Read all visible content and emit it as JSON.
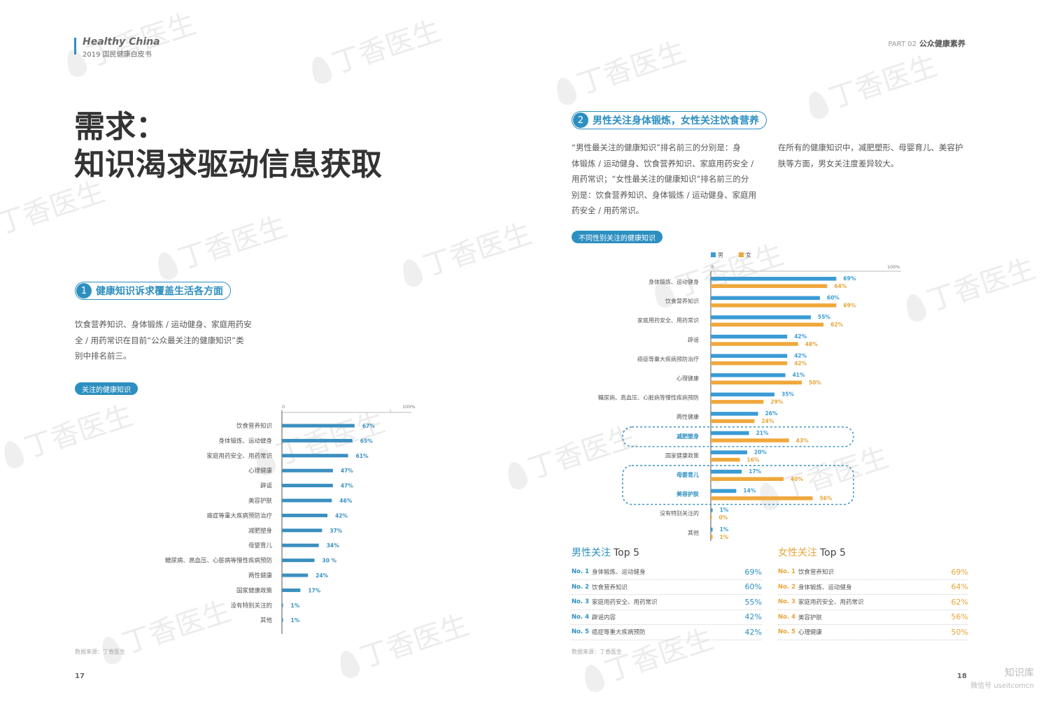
{
  "header": {
    "brand": "Healthy China",
    "brand_sub": "2019 国民健康白皮书",
    "part_label": "PART 02",
    "part_title": "公众健康素养"
  },
  "watermark_text": "丁香医生",
  "left_page": {
    "title_line1": "需求：",
    "title_line2": "知识渴求驱动信息获取",
    "section": {
      "number": "1",
      "title": "健康知识诉求覆盖生活各方面"
    },
    "paragraph": [
      "饮食营养知识、身体锻炼 / 运动健身、家庭用药安",
      "全 / 用药常识在目前“公众最关注的健康知识”类",
      "别中排名前三。"
    ],
    "chart_tag": "关注的健康知识",
    "source": "数据来源：丁香医生",
    "page_number": "17"
  },
  "right_page": {
    "section": {
      "number": "2",
      "title": "男性关注身体锻炼，女性关注饮食营养"
    },
    "paragraph_left": [
      "“男性最关注的健康知识”排名前三的分别是：身",
      "体锻炼 / 运动健身、饮食营养知识、家庭用药安全 /",
      "用药常识；“女性最关注的健康知识”排名前三的分",
      "别是：饮食营养知识、身体锻炼 / 运动健身、家庭用",
      "药安全 / 用药常识。"
    ],
    "paragraph_right": [
      "在所有的健康知识中，减肥塑形、母婴育儿、美容护",
      "肤等方面，男女关注度差异较大。"
    ],
    "chart_tag": "不同性别关注的健康知识",
    "top5_suffix": "Top 5",
    "male_top5": {
      "label": "男性关注",
      "rows": [
        {
          "no": "No. 1",
          "name": "身体锻炼、运动健身",
          "pct": "69%"
        },
        {
          "no": "No. 2",
          "name": "饮食营养知识",
          "pct": "60%"
        },
        {
          "no": "No. 3",
          "name": "家庭用药安全、用药常识",
          "pct": "55%"
        },
        {
          "no": "No. 4",
          "name": "辟谣内容",
          "pct": "42%"
        },
        {
          "no": "No. 5",
          "name": "癌症等重大疾病预防",
          "pct": "42%"
        }
      ]
    },
    "female_top5": {
      "label": "女性关注",
      "rows": [
        {
          "no": "No. 1",
          "name": "饮食营养知识",
          "pct": "69%"
        },
        {
          "no": "No. 2",
          "name": "身体锻炼、运动健身",
          "pct": "64%"
        },
        {
          "no": "No. 3",
          "name": "家庭用药安全、用药常识",
          "pct": "62%"
        },
        {
          "no": "No. 4",
          "name": "美容护肤",
          "pct": "56%"
        },
        {
          "no": "No. 5",
          "name": "心理健康",
          "pct": "50%"
        }
      ]
    },
    "source": "数据来源：丁香医生",
    "page_number": "18"
  },
  "wechat": {
    "title": "知识库",
    "sub": "微信号 useitcomcn"
  },
  "chart_data": [
    {
      "type": "bar",
      "orientation": "horizontal",
      "axis_labels": [
        "0",
        "100%"
      ],
      "xlim": [
        0,
        100
      ],
      "color": "#3a8fbf",
      "categories": [
        "饮食营养知识",
        "身体锻炼、运动健身",
        "家庭用药安全、用药常识",
        "心理健康",
        "辟谣",
        "美容护肤",
        "癌症等重大疾病预防治疗",
        "减肥塑身",
        "母婴育儿",
        "糖尿病、高血压、心脏病等慢性疾病预防",
        "两性健康",
        "国家健康政策",
        "没有特别关注的",
        "其他"
      ],
      "values": [
        67,
        65,
        61,
        47,
        47,
        46,
        42,
        37,
        34,
        30,
        24,
        17,
        1,
        1
      ],
      "value_labels": [
        "67%",
        "65%",
        "61%",
        "47%",
        "47%",
        "46%",
        "42%",
        "37%",
        "34%",
        "30 %",
        "24%",
        "17%",
        "1%",
        "1%"
      ]
    },
    {
      "type": "bar",
      "orientation": "horizontal",
      "axis_labels": [
        "0",
        "100%"
      ],
      "xlim": [
        0,
        100
      ],
      "legend": "top-left",
      "categories": [
        "身体锻炼、运动健身",
        "饮食营养知识",
        "家庭用药安全、用药常识",
        "辟谣",
        "癌症等重大疾病预防治疗",
        "心理健康",
        "糖尿病、高血压、心脏病等慢性疾病预防",
        "两性健康",
        "减肥塑身",
        "国家健康政策",
        "母婴育儿",
        "美容护肤",
        "没有特别关注的",
        "其他"
      ],
      "highlighted": [
        "减肥塑身",
        "母婴育儿",
        "美容护肤"
      ],
      "series": [
        {
          "name": "男",
          "color": "#3a9bd5",
          "values": [
            69,
            60,
            55,
            42,
            42,
            41,
            35,
            26,
            21,
            20,
            17,
            14,
            1,
            1
          ],
          "labels": [
            "69%",
            "60%",
            "55%",
            "42%",
            "42%",
            "41%",
            "35%",
            "26%",
            "21%",
            "20%",
            "17%",
            "14%",
            "1%",
            "1%"
          ]
        },
        {
          "name": "女",
          "color": "#f0a83c",
          "values": [
            64,
            69,
            62,
            48,
            42,
            50,
            29,
            24,
            43,
            16,
            40,
            56,
            0,
            1
          ],
          "labels": [
            "64%",
            "69%",
            "62%",
            "48%",
            "42%",
            "50%",
            "29%",
            "24%",
            "43%",
            "16%",
            "40%",
            "56%",
            "0%",
            "1%"
          ]
        }
      ]
    }
  ]
}
